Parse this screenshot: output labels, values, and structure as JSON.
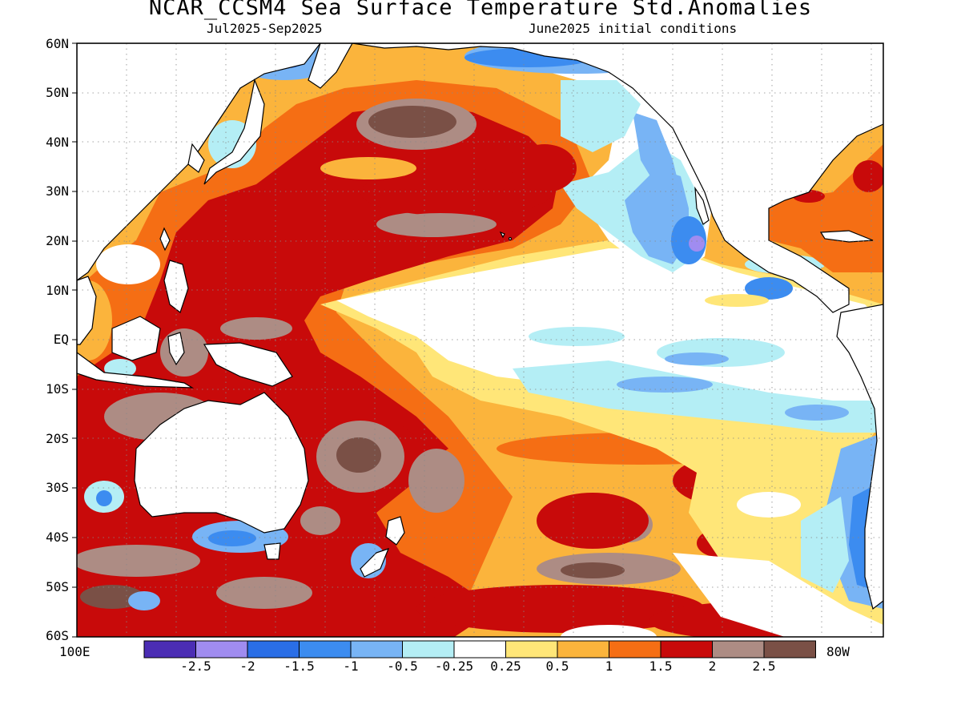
{
  "title": "NCAR_CCSM4 Sea Surface Temperature Std.Anomalies",
  "subtitle_left": "Jul2025-Sep2025",
  "subtitle_right": "June2025 initial conditions",
  "lat_labels": [
    "60N",
    "50N",
    "40N",
    "30N",
    "20N",
    "10N",
    "EQ",
    "10S",
    "20S",
    "30S",
    "40S",
    "50S",
    "60S"
  ],
  "lon_left": "100E",
  "lon_right": "80W",
  "colorbar": {
    "colors": [
      "#4b2db4",
      "#a08cf0",
      "#2a6ee6",
      "#3c8cf0",
      "#78b4f5",
      "#b4eef5",
      "#ffffff",
      "#ffe678",
      "#fbb43c",
      "#f56e14",
      "#c80a0a",
      "#ad8c84",
      "#7a5046"
    ],
    "ticks": [
      "-2.5",
      "-2",
      "-1.5",
      "-1",
      "-0.5",
      "-0.25",
      "0.25",
      "0.5",
      "1",
      "1.5",
      "2",
      "2.5"
    ]
  }
}
